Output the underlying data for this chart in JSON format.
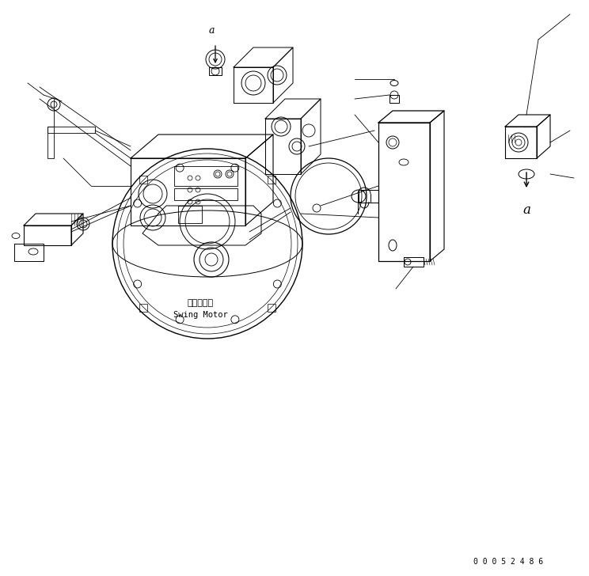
{
  "bg_color": "#ffffff",
  "line_color": "#000000",
  "fig_width": 7.44,
  "fig_height": 7.28,
  "dpi": 100,
  "part_number": "0 0 0 5 2 4 8 6",
  "swing_motor_jp": "旋回モータ",
  "swing_motor_en": "Swing Motor",
  "label_a_top": "a",
  "label_a_right": "a"
}
